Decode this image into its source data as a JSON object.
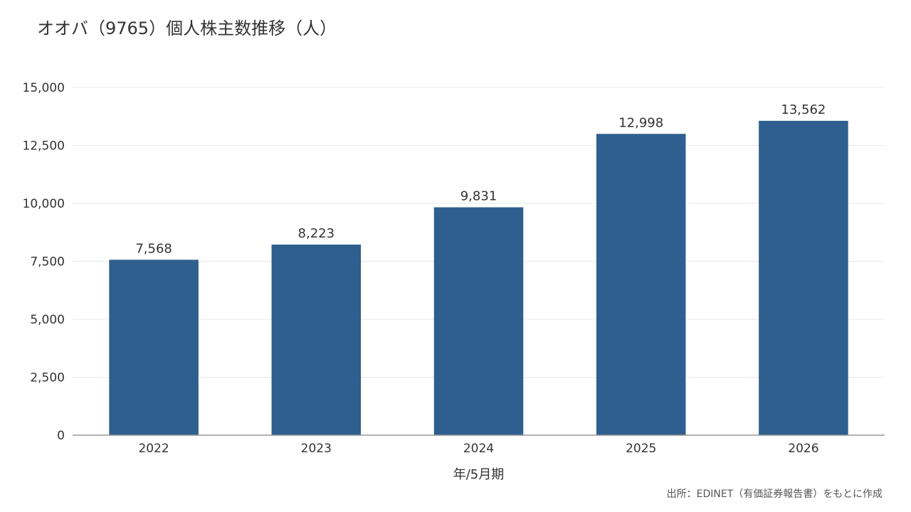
{
  "title": "オオバ（9765）個人株主数推移（人）",
  "source": "出所：EDINET（有価証券報告書）をもとに作成",
  "colors": {
    "bar": "#2e5f8e",
    "grid": "#e8e8e8",
    "axis": "#999999",
    "text": "#333333"
  },
  "chart_data": {
    "type": "bar",
    "categories": [
      "2022",
      "2023",
      "2024",
      "2025",
      "2026"
    ],
    "values": [
      7568,
      8223,
      9831,
      12998,
      13562
    ],
    "value_labels": [
      "7,568",
      "8,223",
      "9,831",
      "12,998",
      "13,562"
    ],
    "title": "オオバ（9765）個人株主数推移（人）",
    "xlabel": "年/5月期",
    "ylabel": "",
    "ylim": [
      0,
      15000
    ],
    "yticks": [
      0,
      2500,
      5000,
      7500,
      10000,
      12500,
      15000
    ],
    "ytick_labels": [
      "0",
      "2,500",
      "5,000",
      "7,500",
      "10,000",
      "12,500",
      "15,000"
    ],
    "grid": true,
    "legend": "none"
  }
}
